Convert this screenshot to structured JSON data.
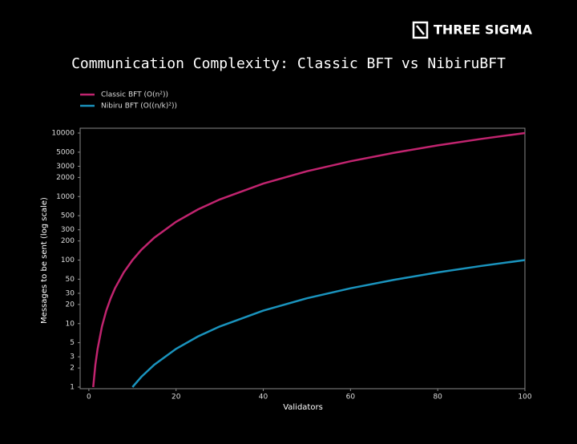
{
  "brand": "THREE SIGMA",
  "chart_data": {
    "type": "line",
    "title": "Communication Complexity: Classic BFT vs NibiruBFT",
    "xlabel": "Validators",
    "ylabel": "Messages to be sent (log scale)",
    "log_y": true,
    "grid": false,
    "legend": "top-left",
    "xlim": [
      -2,
      100
    ],
    "xticks": [
      0,
      20,
      40,
      60,
      80,
      100
    ],
    "ylim": [
      1,
      10000
    ],
    "yticks": [
      1,
      2,
      3,
      5,
      10,
      20,
      30,
      50,
      100,
      200,
      300,
      500,
      1000,
      2000,
      3000,
      5000,
      10000
    ],
    "series": [
      {
        "name": "Classic BFT (O(n²))",
        "color": "#c1246f",
        "x": [
          1,
          1.5,
          2,
          3,
          4,
          5,
          6,
          8,
          10,
          12,
          15,
          20,
          25,
          30,
          40,
          50,
          60,
          70,
          80,
          90,
          100
        ],
        "values": [
          1,
          2.25,
          4,
          9,
          16,
          25,
          36,
          64,
          100,
          144,
          225,
          400,
          625,
          900,
          1600,
          2500,
          3600,
          4900,
          6400,
          8100,
          10000
        ]
      },
      {
        "name": "Nibiru BFT (O((n/k)²))",
        "color": "#1a93bd",
        "x": [
          10,
          12,
          15,
          20,
          25,
          30,
          40,
          50,
          60,
          70,
          80,
          90,
          100
        ],
        "values": [
          1,
          1.44,
          2.25,
          4,
          6.25,
          9,
          16,
          25,
          36,
          49,
          64,
          81,
          100
        ]
      }
    ]
  }
}
